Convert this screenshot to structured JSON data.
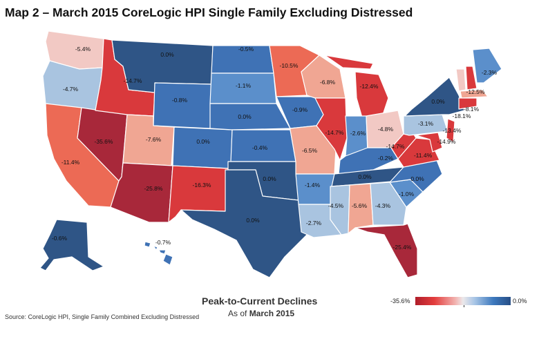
{
  "title": "Map 2 – March 2015 CoreLogic HPI Single Family Excluding Distressed",
  "legend": {
    "title": "Peak-to-Current Declines",
    "subtitle_prefix": "As of ",
    "subtitle_date": "March 2015",
    "min_label": "-35.6%",
    "max_label": "0.0%"
  },
  "source": "Source: CoreLogic HPI, Single Family Combined Excluding Distressed",
  "colors": {
    "deep_red": "#a8283a",
    "red": "#d9393c",
    "orange_red": "#ec6a55",
    "salmon": "#f0a693",
    "pink": "#f2c9c4",
    "light_blue": "#a9c4e0",
    "mid_blue": "#5b8fcb",
    "blue": "#3f72b5",
    "navy": "#2f5586"
  },
  "states": {
    "WA": "-5.4%",
    "OR": "-4.7%",
    "CA": "-11.4%",
    "NV": "-35.6%",
    "ID": "-14.7%",
    "MT": "0.0%",
    "WY": "-0.8%",
    "UT": "-7.6%",
    "AZ": "-25.8%",
    "CO": "0.0%",
    "NM": "-16.3%",
    "ND": "-0.5%",
    "SD": "-1.1%",
    "NE": "0.0%",
    "KS": "-0.4%",
    "OK": "0.0%",
    "TX": "0.0%",
    "MN": "-10.5%",
    "IA": "-0.9%",
    "MO": "-6.5%",
    "AR": "-1.4%",
    "LA": "-2.7%",
    "WI": "-6.8%",
    "IL": "-14.7%",
    "MI": "-12.4%",
    "IN": "-2.6%",
    "OH": "-4.8%",
    "KY": "-0.2%",
    "TN": "0.0%",
    "MS": "-4.5%",
    "AL": "-5.6%",
    "GA": "-4.3%",
    "FL": "-25.4%",
    "SC": "-1.0%",
    "NC": "0.0%",
    "VA": "-11.4%",
    "WV": "-14.7%",
    "PA": "-3.1%",
    "NY": "0.0%",
    "ME": "-2.3%",
    "NH": "-12.5%",
    "MA": "-8.1%",
    "RI": "-18.1%",
    "NJ": "-13.4%",
    "MD": "-14.9%",
    "AK": "-0.6%",
    "HI": "-0.7%"
  }
}
